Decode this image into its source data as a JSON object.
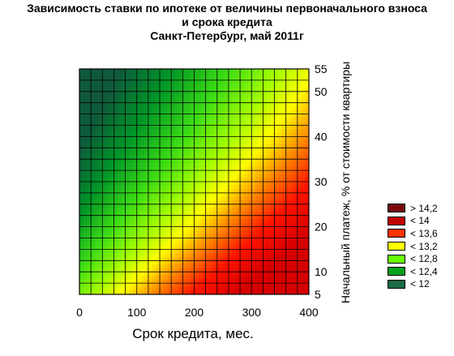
{
  "title": {
    "line1": "Зависимость ставки по ипотеке от величины первоначального взноса",
    "line2": "и срока кредита",
    "line3": "Санкт-Петербург, май 2011г"
  },
  "chart_data": {
    "type": "heatmap",
    "xlabel": "Срок кредита, мес.",
    "ylabel": "Начальный платеж, % от стоимости квартиры",
    "xlim": [
      0,
      400
    ],
    "ylim": [
      5,
      55
    ],
    "xticks": [
      "0",
      "100",
      "200",
      "300",
      "400"
    ],
    "yticks": [
      "55",
      "50",
      "40",
      "30",
      "20",
      "10",
      "5"
    ],
    "grid": true,
    "legend_position": "right",
    "legend": [
      {
        "label": "> 14,2",
        "color": "#7a0a0a"
      },
      {
        "label": "< 14",
        "color": "#c00000"
      },
      {
        "label": "< 13,6",
        "color": "#ff3300"
      },
      {
        "label": "< 13,2",
        "color": "#ffff00"
      },
      {
        "label": "< 12,8",
        "color": "#66ff00"
      },
      {
        "label": "< 12,4",
        "color": "#00a020"
      },
      {
        "label": "< 12",
        "color": "#1a6a45"
      }
    ]
  }
}
